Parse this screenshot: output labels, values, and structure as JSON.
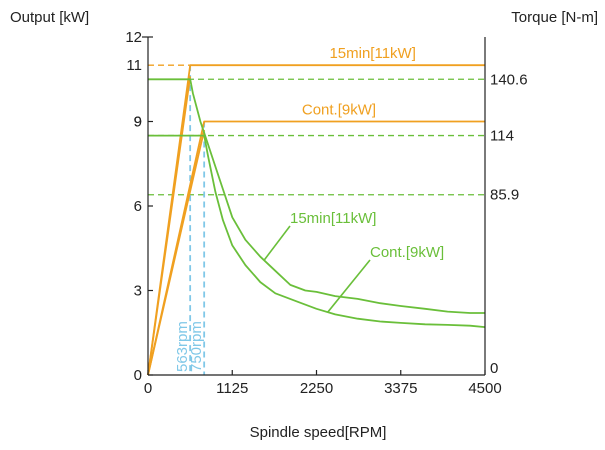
{
  "chart_data": {
    "type": "line",
    "left_axis_title": "Output [kW]",
    "right_axis_title": "Torque [N-m]",
    "xlabel": "Spindle speed[RPM]",
    "xlim": [
      0,
      4500
    ],
    "ylim_left": [
      0,
      12
    ],
    "x_ticks": [
      0,
      1125,
      2250,
      3375,
      4500
    ],
    "x_tick_labels": [
      "0",
      "1125",
      "2250",
      "3375",
      "4500"
    ],
    "y_left_ticks": [
      0,
      3,
      6,
      9,
      12
    ],
    "y_left_tick_labels": [
      "0",
      "3",
      "6",
      "9",
      "12"
    ],
    "y_left_highlight_ticks": [
      {
        "value": 11,
        "label": "11"
      },
      {
        "value": 9,
        "label": "9"
      }
    ],
    "y_right_ticks": [
      {
        "left_equiv": 10.5,
        "label": "140.6"
      },
      {
        "left_equiv": 8.5,
        "label": "114"
      },
      {
        "left_equiv": 6.4,
        "label": "85.9"
      },
      {
        "left_equiv": 0,
        "label": "0"
      }
    ],
    "colors": {
      "output": "#f0a020",
      "torque": "#6abf3a",
      "base_speed": "#80c8e8"
    },
    "output_series": [
      {
        "label": "15min[11kW]",
        "x": [
          0,
          563,
          4500
        ],
        "y": [
          0,
          11,
          11
        ]
      },
      {
        "label": "Cont.[9kW]",
        "x": [
          0,
          750,
          4500
        ],
        "y": [
          0,
          9,
          9
        ]
      }
    ],
    "output_rise_extra": [
      {
        "x": [
          0,
          563
        ],
        "y": [
          0,
          10.6
        ]
      },
      {
        "x": [
          0,
          750
        ],
        "y": [
          0,
          8.7
        ]
      }
    ],
    "torque_series": [
      {
        "label": "15min[11kW]",
        "x": [
          0,
          563,
          600,
          700,
          800,
          900,
          1000,
          1125,
          1300,
          1500,
          1700,
          1900,
          2100,
          2250,
          2500,
          2800,
          3100,
          3375,
          3700,
          4000,
          4300,
          4500
        ],
        "y": [
          10.5,
          10.5,
          10.0,
          9.0,
          8.2,
          7.4,
          6.6,
          5.6,
          4.8,
          4.2,
          3.7,
          3.2,
          3.0,
          2.95,
          2.8,
          2.7,
          2.55,
          2.45,
          2.35,
          2.25,
          2.2,
          2.2
        ]
      },
      {
        "label": "Cont.[9kW]",
        "x": [
          0,
          750,
          800,
          900,
          1000,
          1125,
          1300,
          1500,
          1700,
          2000,
          2250,
          2500,
          2800,
          3100,
          3375,
          3700,
          4000,
          4300,
          4500
        ],
        "y": [
          8.5,
          8.5,
          7.8,
          6.5,
          5.5,
          4.6,
          3.9,
          3.3,
          2.9,
          2.6,
          2.35,
          2.15,
          2.0,
          1.9,
          1.85,
          1.8,
          1.78,
          1.75,
          1.7
        ]
      }
    ],
    "torque_ref_lines": [
      10.5,
      8.5,
      6.4
    ],
    "output_ref_dashed": [
      11
    ],
    "base_speeds": [
      {
        "rpm": 563,
        "label": "563rpm"
      },
      {
        "rpm": 750,
        "label": "750rpm"
      }
    ],
    "annotations": [
      {
        "text": "15min[11kW]",
        "color": "output"
      },
      {
        "text": "Cont.[9kW]",
        "color": "output"
      },
      {
        "text": "15min[11kW]",
        "color": "torque"
      },
      {
        "text": "Cont.[9kW]",
        "color": "torque"
      }
    ]
  }
}
